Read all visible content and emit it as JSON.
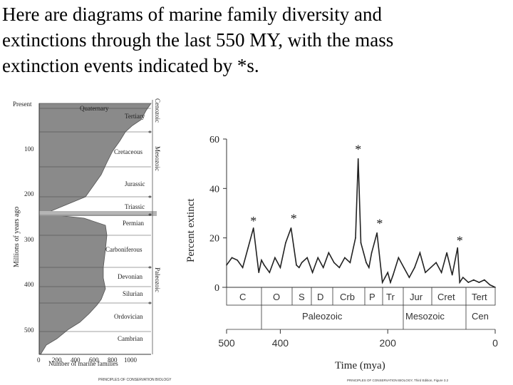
{
  "heading": {
    "lines": [
      "Here are diagrams of marine family diversity and",
      "extinctions through the last 550 MY, with the mass",
      "extinction events indicated by *s."
    ]
  },
  "left_chart": {
    "present_label": "Present",
    "y_ticks": [
      "100",
      "200",
      "300",
      "400",
      "500"
    ],
    "ylabel": "Millions of years ago",
    "x_ticks": [
      "0",
      "200",
      "400",
      "600",
      "800",
      "1000"
    ],
    "xlabel": "Number of marine families",
    "periods": [
      "Quaternary",
      "Tertiary",
      "Cretaceous",
      "Jurassic",
      "Triassic",
      "Permian",
      "Carboniferous",
      "Devonian",
      "Silurian",
      "Ordovician",
      "Cambrian"
    ],
    "eras": [
      "Cenozoic",
      "Mesozoic",
      "Paleozoic"
    ],
    "credit": "PRINCIPLES OF CONSERVATION BIOLOGY"
  },
  "chart_data": {
    "type": "line",
    "title": "",
    "xlabel": "Time (mya)",
    "ylabel": "Percent extinct",
    "xlim": [
      500,
      0
    ],
    "ylim": [
      0,
      60
    ],
    "x_ticks": [
      "500",
      "400",
      "200",
      "0"
    ],
    "y_ticks": [
      "0",
      "20",
      "40",
      "60"
    ],
    "series": [
      {
        "x": [
          500,
          490,
          480,
          470,
          460,
          450,
          440,
          435,
          430,
          420,
          410,
          400,
          390,
          380,
          370,
          365,
          360,
          350,
          340,
          330,
          320,
          310,
          300,
          290,
          280,
          270,
          260,
          255,
          250,
          245,
          240,
          235,
          230,
          225,
          220,
          210,
          205,
          200,
          195,
          190,
          180,
          170,
          160,
          150,
          140,
          130,
          120,
          110,
          100,
          90,
          80,
          70,
          66,
          60,
          50,
          40,
          30,
          20,
          10,
          0
        ],
        "y": [
          9,
          12,
          11,
          8,
          16,
          24,
          6,
          11,
          9,
          6,
          12,
          8,
          18,
          24,
          9,
          8,
          10,
          12,
          6,
          12,
          8,
          14,
          10,
          8,
          12,
          10,
          20,
          52,
          18,
          14,
          10,
          8,
          14,
          18,
          22,
          2,
          4,
          6,
          2,
          5,
          12,
          8,
          4,
          8,
          14,
          6,
          8,
          10,
          6,
          14,
          5,
          16,
          2,
          4,
          2,
          3,
          2,
          3,
          1,
          0
        ]
      }
    ],
    "extinction_marker": "*",
    "extinction_events": [
      {
        "x": 450,
        "y": 24
      },
      {
        "x": 375,
        "y": 25
      },
      {
        "x": 255,
        "y": 53
      },
      {
        "x": 215,
        "y": 23
      },
      {
        "x": 66,
        "y": 16
      }
    ],
    "periods": [
      "C",
      "O",
      "S",
      "D",
      "Crb",
      "P",
      "Tr",
      "Jur",
      "Cret",
      "Tert"
    ],
    "eras": [
      "Paleozoic",
      "Mesozoic",
      "Cen"
    ],
    "credit": "PRINCIPLES OF CONSERVATION BIOLOGY, Third Edition, Figure 3.2"
  }
}
